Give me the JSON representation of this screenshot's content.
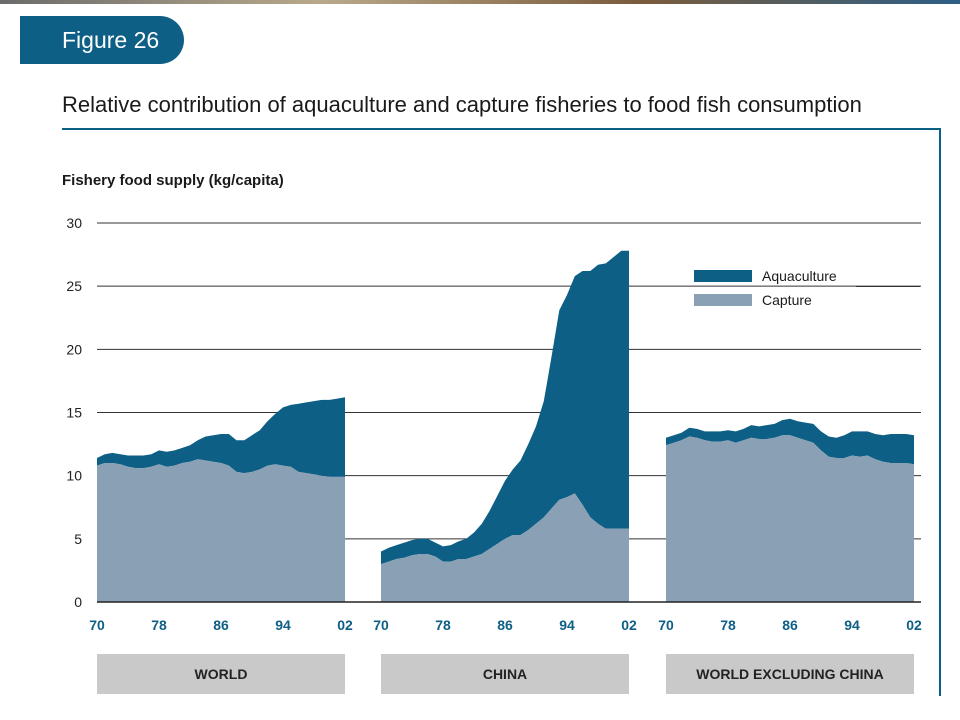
{
  "figure_label": "Figure 26",
  "figure_title": "Relative contribution of aquaculture and capture fisheries to food fish consumption",
  "chart_data": {
    "type": "area",
    "stacked": true,
    "ylabel": "Fishery food supply (kg/capita)",
    "ylim": [
      0,
      30
    ],
    "yticks": [
      0,
      5,
      10,
      15,
      20,
      25,
      30
    ],
    "xticks": [
      "70",
      "78",
      "86",
      "94",
      "02"
    ],
    "grid": true,
    "legend_position": "top-right",
    "colors": {
      "Aquaculture": "#0e5f86",
      "Capture": "#8aa0b4"
    },
    "legend": [
      "Aquaculture",
      "Capture"
    ],
    "panels": [
      {
        "label": "WORLD",
        "years": [
          1970,
          1971,
          1972,
          1973,
          1974,
          1975,
          1976,
          1977,
          1978,
          1979,
          1980,
          1981,
          1982,
          1983,
          1984,
          1985,
          1986,
          1987,
          1988,
          1989,
          1990,
          1991,
          1992,
          1993,
          1994,
          1995,
          1996,
          1997,
          1998,
          1999,
          2000,
          2001,
          2002
        ],
        "series": [
          {
            "name": "Capture",
            "values": [
              10.8,
              11.0,
              11.0,
              10.9,
              10.7,
              10.6,
              10.6,
              10.7,
              10.9,
              10.7,
              10.8,
              11.0,
              11.1,
              11.3,
              11.2,
              11.1,
              11.0,
              10.8,
              10.3,
              10.2,
              10.3,
              10.5,
              10.8,
              10.9,
              10.8,
              10.7,
              10.3,
              10.2,
              10.1,
              10.0,
              9.9,
              9.9,
              9.9
            ]
          },
          {
            "name": "Aquaculture",
            "values": [
              0.6,
              0.7,
              0.8,
              0.8,
              0.9,
              1.0,
              1.0,
              1.0,
              1.1,
              1.2,
              1.2,
              1.2,
              1.3,
              1.5,
              1.9,
              2.1,
              2.3,
              2.5,
              2.5,
              2.6,
              2.9,
              3.1,
              3.5,
              4.0,
              4.6,
              4.9,
              5.4,
              5.6,
              5.8,
              6.0,
              6.1,
              6.2,
              6.3
            ]
          }
        ]
      },
      {
        "label": "CHINA",
        "years": [
          1970,
          1971,
          1972,
          1973,
          1974,
          1975,
          1976,
          1977,
          1978,
          1979,
          1980,
          1981,
          1982,
          1983,
          1984,
          1985,
          1986,
          1987,
          1988,
          1989,
          1990,
          1991,
          1992,
          1993,
          1994,
          1995,
          1996,
          1997,
          1998,
          1999,
          2000,
          2001,
          2002
        ],
        "series": [
          {
            "name": "Capture",
            "values": [
              3.0,
              3.2,
              3.4,
              3.5,
              3.7,
              3.8,
              3.8,
              3.6,
              3.2,
              3.2,
              3.4,
              3.4,
              3.6,
              3.8,
              4.2,
              4.6,
              5.0,
              5.3,
              5.3,
              5.7,
              6.2,
              6.7,
              7.4,
              8.1,
              8.3,
              8.6,
              7.7,
              6.7,
              6.2,
              5.8,
              5.8,
              5.8,
              5.8
            ]
          },
          {
            "name": "Aquaculture",
            "values": [
              1.0,
              1.1,
              1.1,
              1.2,
              1.2,
              1.2,
              1.2,
              1.1,
              1.2,
              1.3,
              1.4,
              1.6,
              1.9,
              2.4,
              3.0,
              3.8,
              4.6,
              5.2,
              5.9,
              6.8,
              7.7,
              9.2,
              12.0,
              15.0,
              16.0,
              17.2,
              18.5,
              19.5,
              20.5,
              21.0,
              21.5,
              22.0,
              22.0
            ]
          }
        ]
      },
      {
        "label": "WORLD EXCLUDING CHINA",
        "years": [
          1970,
          1971,
          1972,
          1973,
          1974,
          1975,
          1976,
          1977,
          1978,
          1979,
          1980,
          1981,
          1982,
          1983,
          1984,
          1985,
          1986,
          1987,
          1988,
          1989,
          1990,
          1991,
          1992,
          1993,
          1994,
          1995,
          1996,
          1997,
          1998,
          1999,
          2000,
          2001,
          2002
        ],
        "series": [
          {
            "name": "Capture",
            "values": [
              12.4,
              12.6,
              12.8,
              13.1,
              13.0,
              12.8,
              12.7,
              12.7,
              12.8,
              12.6,
              12.8,
              13.0,
              12.9,
              12.9,
              13.0,
              13.2,
              13.2,
              13.0,
              12.8,
              12.6,
              12.0,
              11.5,
              11.4,
              11.4,
              11.6,
              11.5,
              11.6,
              11.3,
              11.1,
              11.0,
              11.0,
              11.0,
              10.9
            ]
          },
          {
            "name": "Aquaculture",
            "values": [
              0.6,
              0.6,
              0.6,
              0.7,
              0.7,
              0.7,
              0.8,
              0.8,
              0.8,
              0.9,
              0.9,
              1.0,
              1.0,
              1.1,
              1.1,
              1.2,
              1.3,
              1.3,
              1.4,
              1.5,
              1.5,
              1.6,
              1.6,
              1.8,
              1.9,
              2.0,
              1.9,
              2.0,
              2.1,
              2.3,
              2.3,
              2.3,
              2.3
            ]
          }
        ]
      }
    ]
  }
}
